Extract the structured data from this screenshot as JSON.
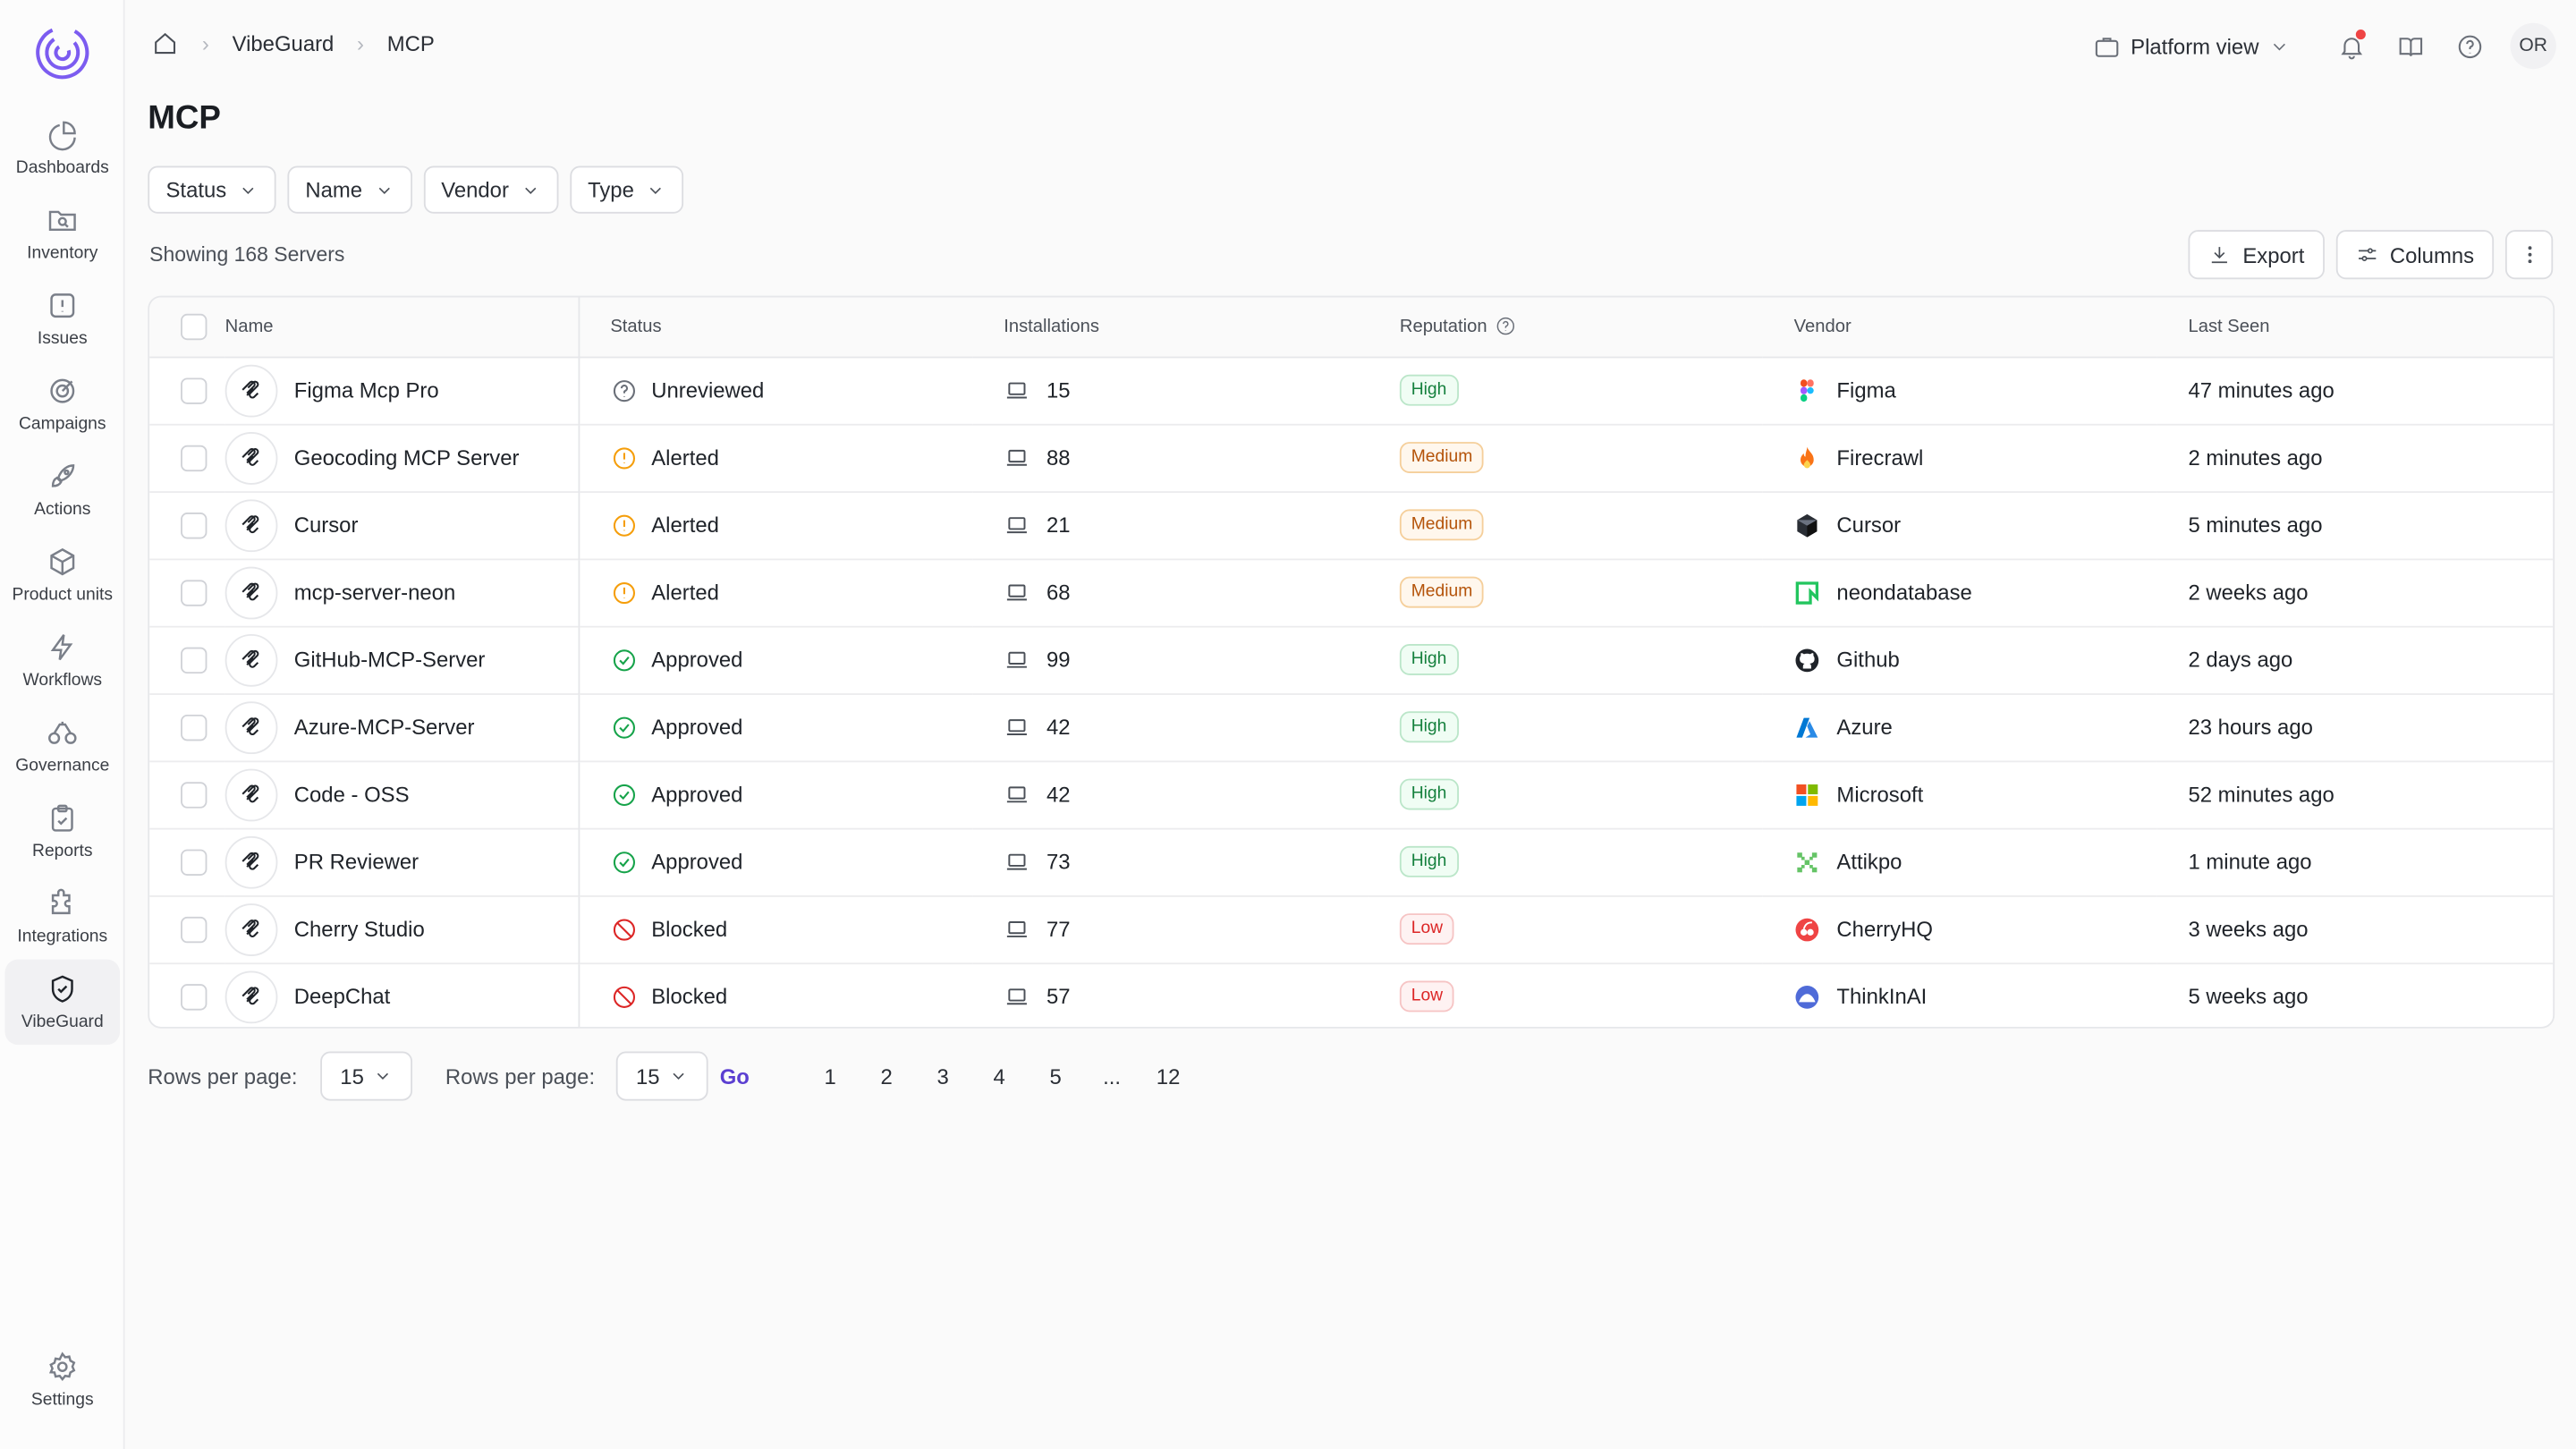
{
  "sidebar": {
    "items": [
      {
        "label": "Dashboards",
        "icon": "pie-chart-icon"
      },
      {
        "label": "Inventory",
        "icon": "folder-search-icon"
      },
      {
        "label": "Issues",
        "icon": "alert-square-icon"
      },
      {
        "label": "Campaigns",
        "icon": "target-icon"
      },
      {
        "label": "Actions",
        "icon": "rocket-icon"
      },
      {
        "label": "Product units",
        "icon": "box-icon"
      },
      {
        "label": "Workflows",
        "icon": "lightning-icon"
      },
      {
        "label": "Governance",
        "icon": "scale-icon"
      },
      {
        "label": "Reports",
        "icon": "clipboard-icon"
      },
      {
        "label": "Integrations",
        "icon": "puzzle-icon"
      },
      {
        "label": "VibeGuard",
        "icon": "shield-check-icon"
      }
    ],
    "settings_label": "Settings"
  },
  "breadcrumb": {
    "items": [
      "VibeGuard",
      "MCP"
    ]
  },
  "topbar": {
    "platform_view": "Platform view",
    "avatar_initials": "OR"
  },
  "page": {
    "title": "MCP",
    "showing": "Showing 168 Servers"
  },
  "filters": [
    "Status",
    "Name",
    "Vendor",
    "Type"
  ],
  "toolbar": {
    "export_label": "Export",
    "columns_label": "Columns"
  },
  "table": {
    "headers": {
      "name": "Name",
      "status": "Status",
      "installations": "Installations",
      "reputation": "Reputation",
      "vendor": "Vendor",
      "last_seen": "Last Seen"
    },
    "rows": [
      {
        "name": "Figma Mcp Pro",
        "status": "Unreviewed",
        "installations": "15",
        "reputation": "High",
        "vendor": "Figma",
        "last_seen": "47 minutes ago"
      },
      {
        "name": "Geocoding MCP Server",
        "status": "Alerted",
        "installations": "88",
        "reputation": "Medium",
        "vendor": "Firecrawl",
        "last_seen": "2 minutes ago"
      },
      {
        "name": "Cursor",
        "status": "Alerted",
        "installations": "21",
        "reputation": "Medium",
        "vendor": "Cursor",
        "last_seen": "5 minutes ago"
      },
      {
        "name": "mcp-server-neon",
        "status": "Alerted",
        "installations": "68",
        "reputation": "Medium",
        "vendor": "neondatabase",
        "last_seen": "2 weeks ago"
      },
      {
        "name": "GitHub-MCP-Server",
        "status": "Approved",
        "installations": "99",
        "reputation": "High",
        "vendor": "Github",
        "last_seen": "2 days ago"
      },
      {
        "name": "Azure-MCP-Server",
        "status": "Approved",
        "installations": "42",
        "reputation": "High",
        "vendor": "Azure",
        "last_seen": "23 hours ago"
      },
      {
        "name": "Code - OSS",
        "status": "Approved",
        "installations": "42",
        "reputation": "High",
        "vendor": "Microsoft",
        "last_seen": "52 minutes ago"
      },
      {
        "name": "PR Reviewer",
        "status": "Approved",
        "installations": "73",
        "reputation": "High",
        "vendor": "Attikpo",
        "last_seen": "1 minute ago"
      },
      {
        "name": "Cherry Studio",
        "status": "Blocked",
        "installations": "77",
        "reputation": "Low",
        "vendor": "CherryHQ",
        "last_seen": "3 weeks ago"
      },
      {
        "name": "DeepChat",
        "status": "Blocked",
        "installations": "57",
        "reputation": "Low",
        "vendor": "ThinkInAI",
        "last_seen": "5 weeks ago"
      }
    ]
  },
  "pagination": {
    "rows_per_page_label": "Rows per page:",
    "rows_per_page_value": "15",
    "goto_label": "Rows per page:",
    "goto_value": "15",
    "go_label": "Go",
    "pages": [
      "1",
      "2",
      "3",
      "4",
      "5",
      "...",
      "12"
    ]
  },
  "colors": {
    "accent": "#5b3fd1",
    "approved": "#16a34a",
    "alerted": "#f59e0b",
    "blocked": "#dc2626",
    "unreviewed": "#6a6f78"
  }
}
